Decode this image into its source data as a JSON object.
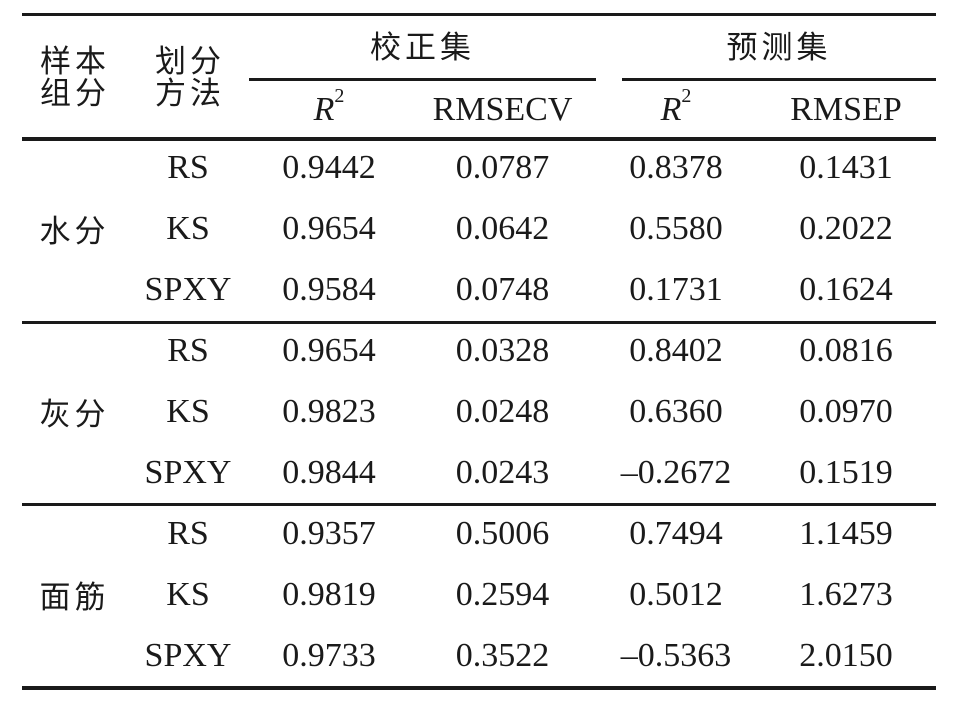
{
  "header": {
    "sample_group_line1": "样本",
    "sample_group_line2": "组分",
    "method_line1": "划分",
    "method_line2": "方法",
    "calibration_set": "校正集",
    "prediction_set": "预测集",
    "r2_letter": "R",
    "r2_sup": "2",
    "rmsecv": "RMSECV",
    "rmsep": "RMSEP"
  },
  "groups": [
    {
      "name": "水分",
      "rows": [
        {
          "method": "RS",
          "cal_r2": "0.9442",
          "rmsecv": "0.0787",
          "pred_r2": "0.8378",
          "rmsep": "0.1431"
        },
        {
          "method": "KS",
          "cal_r2": "0.9654",
          "rmsecv": "0.0642",
          "pred_r2": "0.5580",
          "rmsep": "0.2022"
        },
        {
          "method": "SPXY",
          "cal_r2": "0.9584",
          "rmsecv": "0.0748",
          "pred_r2": "0.1731",
          "rmsep": "0.1624"
        }
      ]
    },
    {
      "name": "灰分",
      "rows": [
        {
          "method": "RS",
          "cal_r2": "0.9654",
          "rmsecv": "0.0328",
          "pred_r2": "0.8402",
          "rmsep": "0.0816"
        },
        {
          "method": "KS",
          "cal_r2": "0.9823",
          "rmsecv": "0.0248",
          "pred_r2": "0.6360",
          "rmsep": "0.0970"
        },
        {
          "method": "SPXY",
          "cal_r2": "0.9844",
          "rmsecv": "0.0243",
          "pred_r2": "–0.2672",
          "rmsep": "0.1519"
        }
      ]
    },
    {
      "name": "面筋",
      "rows": [
        {
          "method": "RS",
          "cal_r2": "0.9357",
          "rmsecv": "0.5006",
          "pred_r2": "0.7494",
          "rmsep": "1.1459"
        },
        {
          "method": "KS",
          "cal_r2": "0.9819",
          "rmsecv": "0.2594",
          "pred_r2": "0.5012",
          "rmsep": "1.6273"
        },
        {
          "method": "SPXY",
          "cal_r2": "0.9733",
          "rmsecv": "0.3522",
          "pred_r2": "–0.5363",
          "rmsep": "2.0150"
        }
      ]
    }
  ]
}
